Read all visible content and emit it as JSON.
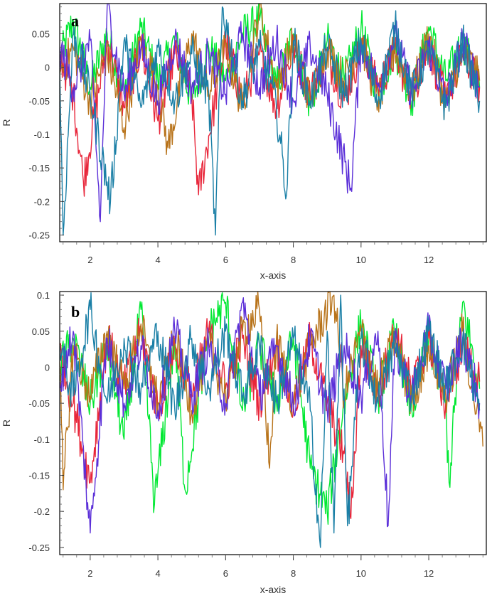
{
  "chart_data": [
    {
      "type": "line",
      "panel_label": "a",
      "xlabel": "x-axis",
      "ylabel": "R",
      "xlim": [
        1.1,
        13.7
      ],
      "ylim": [
        -0.26,
        0.095
      ],
      "xticks": [
        2,
        4,
        6,
        8,
        10,
        12
      ],
      "yticks": [
        0.05,
        0,
        -0.05,
        -0.1,
        -0.15,
        -0.2,
        -0.25
      ],
      "ytick_labels": [
        "0.05",
        "0",
        "-0.05",
        "-0.1",
        "-0.15",
        "-0.2",
        "-0.25"
      ],
      "grid": false,
      "colors": [
        "#00e832",
        "#e8263a",
        "#b8731a",
        "#5b2fd8",
        "#1a7fa6"
      ],
      "series": [
        {
          "x": [
            1.1,
            1.5,
            2.0,
            2.5,
            3.0,
            3.5,
            4.0,
            4.5,
            5.0,
            5.5,
            6.0,
            6.5,
            7.0,
            7.5,
            8.0,
            8.5,
            9.0,
            9.5,
            10.0,
            10.5,
            11.0,
            11.5,
            12.0,
            12.5,
            13.0,
            13.5
          ],
          "y": [
            0.01,
            0.07,
            -0.03,
            0.05,
            -0.04,
            0.06,
            -0.02,
            0.04,
            -0.05,
            0.03,
            -0.02,
            0.05,
            0.07,
            -0.03,
            0.05,
            -0.06,
            0.04,
            -0.02,
            0.06,
            -0.04,
            0.03,
            -0.05,
            0.06,
            -0.02,
            0.04,
            -0.03
          ]
        },
        {
          "x": [
            1.1,
            1.5,
            1.8,
            2.5,
            3.0,
            3.5,
            4.0,
            4.5,
            5.0,
            5.2,
            6.0,
            6.5,
            7.0,
            7.5,
            8.0,
            8.5,
            9.0,
            9.5,
            10.0,
            10.5,
            11.0,
            11.5,
            12.0,
            12.5,
            13.0,
            13.5
          ],
          "y": [
            0.02,
            -0.04,
            -0.17,
            0.04,
            -0.06,
            0.03,
            -0.08,
            0.02,
            -0.04,
            -0.19,
            0.04,
            -0.05,
            0.02,
            -0.06,
            0.03,
            -0.04,
            0.02,
            -0.05,
            0.03,
            -0.03,
            0.02,
            -0.04,
            0.03,
            -0.05,
            0.02,
            -0.03
          ]
        },
        {
          "x": [
            1.1,
            1.5,
            2.0,
            2.5,
            3.0,
            3.5,
            4.0,
            4.3,
            5.0,
            5.5,
            6.0,
            6.5,
            7.0,
            7.5,
            8.0,
            8.5,
            9.0,
            9.5,
            10.0,
            10.5,
            11.0,
            11.5,
            12.0,
            12.5,
            13.0,
            13.5
          ],
          "y": [
            -0.01,
            0.03,
            -0.05,
            0.02,
            -0.09,
            0.04,
            -0.03,
            -0.12,
            0.05,
            -0.04,
            0.03,
            -0.06,
            0.09,
            -0.03,
            0.04,
            -0.05,
            0.03,
            -0.02,
            0.04,
            -0.05,
            0.03,
            -0.04,
            0.05,
            -0.06,
            0.03,
            -0.02
          ]
        },
        {
          "x": [
            1.1,
            1.5,
            2.0,
            2.3,
            2.5,
            3.0,
            3.5,
            4.0,
            4.5,
            5.0,
            5.5,
            6.0,
            6.5,
            7.0,
            7.5,
            8.0,
            8.5,
            9.0,
            9.7,
            10.0,
            10.5,
            11.0,
            11.5,
            12.0,
            12.5,
            13.0,
            13.5
          ],
          "y": [
            0.03,
            -0.03,
            0.04,
            -0.23,
            0.09,
            -0.04,
            0.03,
            -0.05,
            0.04,
            -0.03,
            0.02,
            -0.04,
            0.05,
            -0.03,
            0.04,
            -0.05,
            0.03,
            -0.04,
            -0.18,
            0.04,
            -0.03,
            0.05,
            -0.04,
            0.03,
            -0.05,
            0.04,
            -0.03
          ]
        },
        {
          "x": [
            1.1,
            1.2,
            1.5,
            2.0,
            2.6,
            3.0,
            3.5,
            4.0,
            4.5,
            5.0,
            5.5,
            5.7,
            5.9,
            6.5,
            7.0,
            7.5,
            7.8,
            8.0,
            8.5,
            9.0,
            9.5,
            10.0,
            10.5,
            11.0,
            11.5,
            12.0,
            12.5,
            13.0,
            13.5
          ],
          "y": [
            0.0,
            -0.25,
            0.05,
            -0.04,
            -0.2,
            0.04,
            -0.06,
            0.03,
            -0.05,
            0.02,
            -0.04,
            -0.25,
            0.09,
            -0.05,
            0.03,
            -0.06,
            -0.19,
            0.04,
            -0.05,
            0.03,
            -0.04,
            0.04,
            -0.05,
            0.06,
            -0.04,
            0.03,
            -0.06,
            0.04,
            -0.05
          ]
        }
      ]
    },
    {
      "type": "line",
      "panel_label": "b",
      "xlabel": "x-axis",
      "ylabel": "R",
      "xlim": [
        1.1,
        13.7
      ],
      "ylim": [
        -0.26,
        0.105
      ],
      "xticks": [
        2,
        4,
        6,
        8,
        10,
        12
      ],
      "yticks": [
        0.1,
        0.05,
        0,
        -0.05,
        -0.1,
        -0.15,
        -0.2,
        -0.25
      ],
      "ytick_labels": [
        "0.1",
        "0.05",
        "0",
        "-0.05",
        "-0.1",
        "-0.15",
        "-0.2",
        "-0.25"
      ],
      "grid": false,
      "colors": [
        "#00e832",
        "#e8263a",
        "#b8731a",
        "#5b2fd8",
        "#1a7fa6"
      ],
      "series": [
        {
          "x": [
            1.1,
            1.5,
            2.0,
            2.5,
            3.0,
            3.5,
            3.9,
            4.5,
            4.8,
            5.5,
            6.0,
            6.5,
            7.0,
            7.5,
            8.0,
            8.5,
            9.0,
            9.5,
            10.0,
            10.5,
            11.0,
            11.5,
            12.0,
            12.5,
            12.6,
            13.0,
            13.5
          ],
          "y": [
            0.0,
            0.04,
            -0.05,
            0.03,
            -0.1,
            0.08,
            -0.19,
            0.04,
            -0.17,
            0.05,
            0.09,
            -0.06,
            0.03,
            -0.05,
            0.04,
            -0.14,
            -0.2,
            -0.05,
            0.06,
            -0.04,
            0.05,
            -0.06,
            0.04,
            -0.05,
            -0.16,
            0.09,
            -0.03
          ]
        },
        {
          "x": [
            1.1,
            1.5,
            2.0,
            2.5,
            3.0,
            3.5,
            4.0,
            4.5,
            5.0,
            5.5,
            6.0,
            6.5,
            7.0,
            7.5,
            8.0,
            8.5,
            9.0,
            9.5,
            9.7,
            10.0,
            10.5,
            11.0,
            11.5,
            12.0,
            12.5,
            13.0,
            13.5
          ],
          "y": [
            0.02,
            -0.05,
            -0.16,
            0.04,
            -0.03,
            0.05,
            -0.06,
            0.03,
            -0.04,
            0.05,
            -0.03,
            0.04,
            -0.05,
            0.03,
            -0.06,
            0.04,
            -0.05,
            -0.12,
            -0.21,
            0.03,
            -0.04,
            0.05,
            -0.03,
            0.04,
            -0.05,
            0.03,
            -0.02
          ]
        },
        {
          "x": [
            1.1,
            1.2,
            1.5,
            2.0,
            2.5,
            3.0,
            3.5,
            4.0,
            4.5,
            5.0,
            5.5,
            6.0,
            6.5,
            7.0,
            7.3,
            7.5,
            8.0,
            8.5,
            9.2,
            9.5,
            10.0,
            10.5,
            11.0,
            11.5,
            12.0,
            12.5,
            13.0,
            13.6
          ],
          "y": [
            0.01,
            -0.17,
            0.03,
            -0.04,
            0.05,
            -0.03,
            0.06,
            -0.05,
            0.04,
            -0.06,
            0.03,
            -0.04,
            0.05,
            0.08,
            -0.14,
            0.04,
            -0.05,
            0.03,
            0.1,
            -0.04,
            0.05,
            -0.03,
            0.04,
            -0.05,
            0.03,
            -0.04,
            0.05,
            -0.11
          ]
        },
        {
          "x": [
            1.1,
            1.5,
            2.0,
            2.5,
            3.0,
            3.5,
            4.0,
            4.5,
            5.0,
            5.5,
            6.0,
            6.5,
            7.0,
            7.5,
            8.0,
            8.5,
            9.0,
            9.5,
            10.0,
            10.5,
            10.8,
            11.0,
            11.5,
            12.0,
            12.5,
            13.0,
            13.5
          ],
          "y": [
            -0.02,
            0.05,
            -0.23,
            0.04,
            -0.05,
            0.03,
            -0.06,
            0.05,
            -0.04,
            0.03,
            -0.05,
            0.09,
            -0.04,
            0.03,
            -0.05,
            0.04,
            -0.06,
            0.03,
            -0.04,
            0.05,
            -0.22,
            0.03,
            -0.04,
            0.05,
            -0.03,
            0.04,
            -0.05
          ]
        },
        {
          "x": [
            1.1,
            1.5,
            2.0,
            2.5,
            3.0,
            3.5,
            4.0,
            4.5,
            5.0,
            5.5,
            6.0,
            6.5,
            7.0,
            7.5,
            8.0,
            8.5,
            8.8,
            9.0,
            9.2,
            9.4,
            9.6,
            10.0,
            10.5,
            11.0,
            11.5,
            12.0,
            12.5,
            13.0,
            13.5
          ],
          "y": [
            0.03,
            -0.04,
            0.08,
            -0.05,
            0.04,
            -0.03,
            0.05,
            -0.06,
            0.04,
            -0.03,
            0.05,
            -0.04,
            0.03,
            -0.05,
            0.04,
            -0.06,
            -0.25,
            0.05,
            -0.23,
            0.1,
            -0.22,
            0.04,
            -0.05,
            0.03,
            -0.04,
            0.05,
            -0.03,
            0.04,
            -0.06
          ]
        }
      ]
    }
  ]
}
